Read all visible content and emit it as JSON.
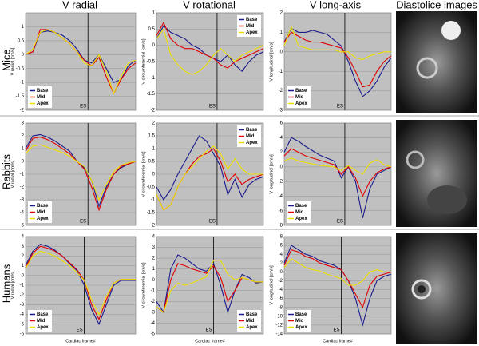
{
  "columns": [
    "V radial",
    "V rotational",
    "V long-axis",
    "Diastolice images"
  ],
  "rows": [
    "Mice",
    "Rabbits",
    "Humans"
  ],
  "chart_data": [
    {
      "type": "line",
      "y_label": "V radial [cm/s]",
      "ylim": [
        -2,
        1.5
      ],
      "yticks": [
        -2,
        -1.5,
        -1,
        -0.5,
        0,
        0.5,
        1
      ],
      "grid": true,
      "legend": "lower-left",
      "annotations": [
        {
          "text": "ES",
          "x": 8.5
        }
      ],
      "series": [
        {
          "name": "Base",
          "color": "#1a1a8c",
          "values": [
            0,
            0.1,
            0.8,
            0.85,
            0.8,
            0.7,
            0.5,
            0.2,
            -0.2,
            -0.3,
            0,
            -0.5,
            -1,
            -0.9,
            -0.4,
            -0.2
          ]
        },
        {
          "name": "Mid",
          "color": "#e00000",
          "values": [
            0,
            0.1,
            0.9,
            0.9,
            0.8,
            0.6,
            0.4,
            0.1,
            -0.2,
            -0.4,
            -0.1,
            -0.8,
            -1.4,
            -0.9,
            -0.5,
            -0.3
          ]
        },
        {
          "name": "Apex",
          "color": "#f0e000",
          "values": [
            0,
            0.2,
            0.8,
            0.9,
            0.8,
            0.6,
            0.4,
            0.1,
            -0.3,
            -0.4,
            0,
            -0.6,
            -1.4,
            -0.8,
            -0.3,
            -0.2
          ]
        }
      ]
    },
    {
      "type": "line",
      "y_label": "V circumferential [cm/s]",
      "ylim": [
        -2,
        1
      ],
      "yticks": [
        -2,
        -1.5,
        -1,
        -0.5,
        0,
        0.5,
        1
      ],
      "grid": true,
      "legend": "upper-right",
      "annotations": [
        {
          "text": "ES",
          "x": 8.5
        }
      ],
      "series": [
        {
          "name": "Base",
          "color": "#1a1a8c",
          "values": [
            0.2,
            0.6,
            0.4,
            0.3,
            0.2,
            0,
            -0.1,
            -0.3,
            -0.4,
            -0.5,
            -0.3,
            -0.6,
            -0.8,
            -0.5,
            -0.3,
            -0.2
          ]
        },
        {
          "name": "Mid",
          "color": "#e00000",
          "values": [
            0.3,
            0.7,
            0.2,
            0,
            -0.1,
            -0.1,
            -0.2,
            -0.3,
            -0.4,
            -0.6,
            -0.7,
            -0.5,
            -0.4,
            -0.3,
            -0.2,
            -0.1
          ]
        },
        {
          "name": "Apex",
          "color": "#f0e000",
          "values": [
            0.2,
            0.5,
            -0.3,
            -0.6,
            -0.8,
            -0.9,
            -0.8,
            -0.6,
            -0.3,
            -0.1,
            -0.3,
            -0.5,
            -0.3,
            -0.2,
            -0.1,
            0
          ]
        }
      ]
    },
    {
      "type": "line",
      "y_label": "V longitudinal [cm/s]",
      "ylim": [
        -3,
        2
      ],
      "yticks": [
        -3,
        -2,
        -1,
        0,
        1,
        2
      ],
      "grid": true,
      "legend": "lower-left",
      "annotations": [
        {
          "text": "ES",
          "x": 8.5
        }
      ],
      "series": [
        {
          "name": "Base",
          "color": "#1a1a8c",
          "values": [
            0.5,
            1.2,
            1,
            1,
            1.1,
            1,
            0.9,
            0.6,
            0.3,
            -0.5,
            -1.5,
            -2.3,
            -2,
            -1.5,
            -0.8,
            -0.3
          ]
        },
        {
          "name": "Mid",
          "color": "#e00000",
          "values": [
            0.5,
            1,
            0.8,
            0.6,
            0.5,
            0.5,
            0.4,
            0.3,
            0.2,
            -0.3,
            -1,
            -1.8,
            -1.7,
            -1,
            -0.5,
            -0.2
          ]
        },
        {
          "name": "Apex",
          "color": "#f0e000",
          "values": [
            0.3,
            1.3,
            0.3,
            0.2,
            0.1,
            0.1,
            0.1,
            0.1,
            0,
            0,
            -0.3,
            -0.4,
            -0.2,
            -0.1,
            0,
            0
          ]
        }
      ]
    },
    {
      "type": "line",
      "y_label": "V radial [cm/s]",
      "ylim": [
        -5,
        3
      ],
      "yticks": [
        -5,
        -4,
        -3,
        -2,
        -1,
        0,
        1,
        2,
        3
      ],
      "grid": true,
      "legend": "lower-left",
      "annotations": [
        {
          "text": "ES",
          "x": 8.5
        }
      ],
      "series": [
        {
          "name": "Base",
          "color": "#1a1a8c",
          "values": [
            1,
            2,
            2.1,
            1.9,
            1.6,
            1.2,
            0.8,
            0,
            -0.5,
            -1.5,
            -3.5,
            -2,
            -1,
            -0.5,
            -0.2,
            0
          ]
        },
        {
          "name": "Mid",
          "color": "#e00000",
          "values": [
            0.8,
            1.8,
            1.9,
            1.7,
            1.4,
            1,
            0.6,
            0,
            -0.6,
            -2,
            -3.8,
            -2.2,
            -1,
            -0.4,
            -0.2,
            0
          ]
        },
        {
          "name": "Apex",
          "color": "#f0e000",
          "values": [
            0.6,
            1.2,
            1.3,
            1.1,
            0.9,
            0.7,
            0.4,
            0,
            -0.4,
            -1.5,
            -3,
            -1.8,
            -0.8,
            -0.3,
            -0.1,
            0
          ]
        }
      ]
    },
    {
      "type": "line",
      "y_label": "V circumferential [cm/s]",
      "ylim": [
        -2,
        2
      ],
      "yticks": [
        -2,
        -1.5,
        -1,
        -0.5,
        0,
        0.5,
        1,
        1.5,
        2
      ],
      "grid": true,
      "legend": "upper-right",
      "annotations": [
        {
          "text": "ES",
          "x": 8.5
        }
      ],
      "series": [
        {
          "name": "Base",
          "color": "#1a1a8c",
          "values": [
            -0.5,
            -1,
            -0.6,
            0,
            0.5,
            1,
            1.5,
            1.3,
            0.8,
            0.3,
            -0.8,
            -0.2,
            -0.9,
            -0.4,
            -0.2,
            -0.1
          ]
        },
        {
          "name": "Mid",
          "color": "#e00000",
          "values": [
            -0.8,
            -1.4,
            -1.2,
            -0.5,
            0,
            0.4,
            0.7,
            0.8,
            1,
            0.5,
            -0.3,
            0,
            -0.4,
            -0.2,
            -0.1,
            0
          ]
        },
        {
          "name": "Apex",
          "color": "#f0e000",
          "values": [
            -0.8,
            -1.4,
            -1.2,
            -0.5,
            0,
            0.3,
            0.6,
            0.9,
            1.1,
            0.8,
            0.2,
            0.6,
            0.2,
            0,
            0,
            0
          ]
        }
      ]
    },
    {
      "type": "line",
      "y_label": "V longitudinal [cm/s]",
      "ylim": [
        -8,
        6
      ],
      "yticks": [
        -8,
        -6,
        -4,
        -2,
        0,
        2,
        4,
        6
      ],
      "grid": true,
      "legend": "lower-left",
      "annotations": [
        {
          "text": "ES",
          "x": 8.5
        }
      ],
      "series": [
        {
          "name": "Base",
          "color": "#1a1a8c",
          "values": [
            2,
            4,
            3.5,
            2.8,
            2.2,
            1.6,
            1.2,
            0.8,
            -1.5,
            0,
            -2,
            -7,
            -3,
            -1,
            -0.5,
            0
          ]
        },
        {
          "name": "Mid",
          "color": "#e00000",
          "values": [
            1.5,
            2.5,
            2,
            1.5,
            1.2,
            0.9,
            0.6,
            0.3,
            -1,
            0,
            -1.5,
            -4,
            -2,
            -0.8,
            -0.3,
            0
          ]
        },
        {
          "name": "Apex",
          "color": "#f0e000",
          "values": [
            0.8,
            1.2,
            0.8,
            0.6,
            0.4,
            0.2,
            0.1,
            0,
            -0.5,
            0.2,
            -0.5,
            -1,
            0.5,
            1,
            0.3,
            0
          ]
        }
      ]
    },
    {
      "type": "line",
      "y_label": "V radial [cm/s]",
      "x_label": "Cardiac frame#",
      "ylim": [
        -6,
        4
      ],
      "yticks": [
        -6,
        -5,
        -4,
        -3,
        -2,
        -1,
        0,
        1,
        2,
        3,
        4
      ],
      "grid": true,
      "legend": "lower-left",
      "annotations": [
        {
          "text": "ES",
          "x": 8
        }
      ],
      "series": [
        {
          "name": "Base",
          "color": "#1a1a8c",
          "values": [
            1,
            2.5,
            3.2,
            3,
            2.6,
            2,
            1.2,
            0.5,
            -1,
            -3.5,
            -5,
            -3,
            -1,
            -0.5,
            -0.5,
            -0.5
          ]
        },
        {
          "name": "Mid",
          "color": "#e00000",
          "values": [
            0.8,
            2.3,
            3,
            2.8,
            2.5,
            2,
            1.3,
            0.6,
            -0.5,
            -3,
            -4.5,
            -2.5,
            -0.8,
            -0.4,
            -0.4,
            -0.4
          ]
        },
        {
          "name": "Apex",
          "color": "#f0e000",
          "values": [
            0.7,
            2,
            2.5,
            2.3,
            2,
            1.5,
            1,
            0.3,
            -0.5,
            -2.5,
            -4,
            -2.2,
            -0.8,
            -0.4,
            -0.4,
            -0.4
          ]
        }
      ]
    },
    {
      "type": "line",
      "y_label": "V circumferential [cm/s]",
      "x_label": "Cardiac frame#",
      "ylim": [
        -5,
        4
      ],
      "yticks": [
        -5,
        -4,
        -3,
        -2,
        -1,
        0,
        1,
        2,
        3,
        4
      ],
      "grid": true,
      "legend": "lower-right",
      "annotations": [
        {
          "text": "ES",
          "x": 8
        }
      ],
      "series": [
        {
          "name": "Base",
          "color": "#1a1a8c",
          "values": [
            -2,
            -3,
            1,
            2.3,
            2,
            1.5,
            1,
            0.8,
            1.5,
            -0.5,
            -3,
            -1,
            0.5,
            0.2,
            -0.3,
            -0.2
          ]
        },
        {
          "name": "Mid",
          "color": "#e00000",
          "values": [
            -2.5,
            -3,
            0,
            1.5,
            1.3,
            1,
            0.8,
            0.6,
            1.3,
            0.2,
            -2,
            -1,
            0.2,
            0,
            -0.2,
            -0.2
          ]
        },
        {
          "name": "Apex",
          "color": "#f0e000",
          "values": [
            -2.5,
            -3,
            -1,
            -0.3,
            -0.5,
            -0.3,
            0,
            0.3,
            1.8,
            1.8,
            0.5,
            0,
            0.2,
            0,
            -0.2,
            -0.2
          ]
        }
      ]
    },
    {
      "type": "line",
      "y_label": "V longitudinal [cm/s]",
      "x_label": "Cardiac frame#",
      "ylim": [
        -14,
        8
      ],
      "yticks": [
        -14,
        -12,
        -10,
        -8,
        -6,
        -4,
        -2,
        0,
        2,
        4,
        6,
        8
      ],
      "grid": true,
      "legend": "lower-left",
      "annotations": [
        {
          "text": "ES",
          "x": 8
        }
      ],
      "series": [
        {
          "name": "Base",
          "color": "#1a1a8c",
          "values": [
            2,
            6,
            5,
            4,
            3.5,
            2.5,
            2,
            1.5,
            0.5,
            -2,
            -6,
            -12,
            -6,
            -2,
            -1,
            -0.5
          ]
        },
        {
          "name": "Mid",
          "color": "#e00000",
          "values": [
            1.5,
            5,
            4.5,
            3.5,
            3,
            2,
            1.5,
            1,
            0.5,
            -2,
            -5,
            -8,
            -3,
            -1,
            -0.5,
            0
          ]
        },
        {
          "name": "Apex",
          "color": "#f0e000",
          "values": [
            1,
            3,
            2,
            1,
            0.5,
            0.2,
            -0.5,
            -1,
            -1.5,
            -3,
            -3,
            -2,
            0,
            0.5,
            0,
            0
          ]
        }
      ]
    }
  ]
}
